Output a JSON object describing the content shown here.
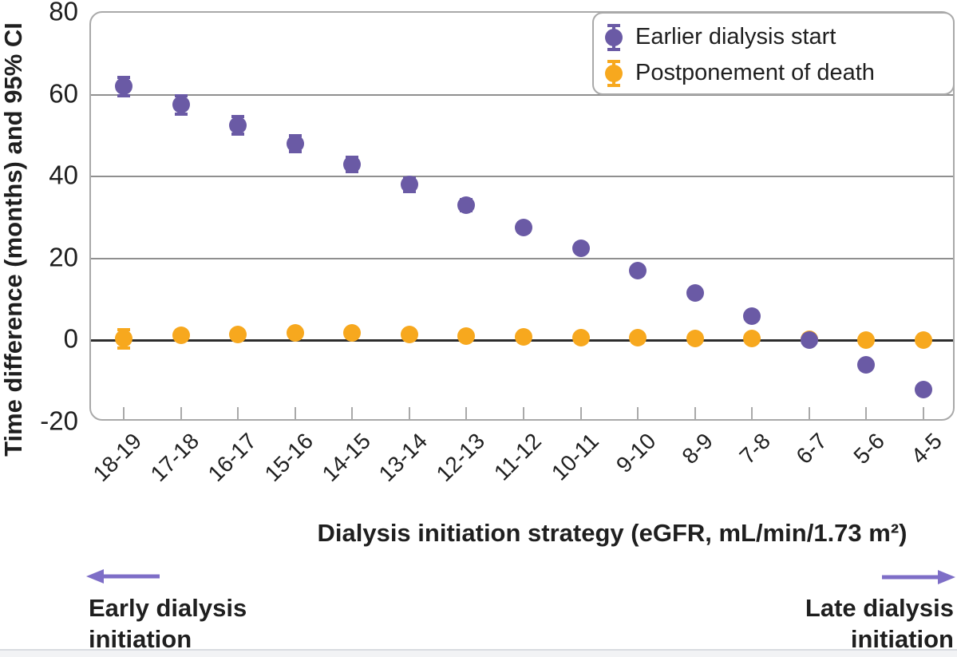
{
  "chart_data": {
    "type": "scatter",
    "title": "",
    "xlabel": "Dialysis initiation strategy (eGFR, mL/min/1.73 m²)",
    "ylabel": "Time difference (months) and 95% CI",
    "categories": [
      "18-19",
      "17-18",
      "16-17",
      "15-16",
      "14-15",
      "13-14",
      "12-13",
      "11-12",
      "10-11",
      "9-10",
      "8-9",
      "7-8",
      "6-7",
      "5-6",
      "4-5"
    ],
    "yticks": [
      80,
      60,
      40,
      20,
      0,
      -20
    ],
    "ylim": [
      -20,
      80
    ],
    "grid": "horizontal-only",
    "legend_position": "top-right-inside",
    "series": [
      {
        "name": "Earlier dialysis start",
        "color": "#6a5aa5",
        "marker": "circle-with-error-bars",
        "values": [
          62,
          57.5,
          52.5,
          48,
          43,
          38,
          33,
          27.5,
          22.5,
          17,
          11.5,
          6,
          0,
          -6,
          -12
        ],
        "ci_halfwidth": [
          2.3,
          2.2,
          2.1,
          1.9,
          1.7,
          1.6,
          1.4,
          1.2,
          1.0,
          0.9,
          0.7,
          0.6,
          0.5,
          0.5,
          0.6
        ]
      },
      {
        "name": "Postponement of death",
        "color": "#f7a81e",
        "marker": "circle-with-error-bars",
        "values": [
          0.4,
          1.2,
          1.5,
          1.8,
          1.8,
          1.4,
          1.0,
          0.8,
          0.7,
          0.7,
          0.5,
          0.4,
          0.2,
          0.1,
          0.1
        ],
        "ci_halfwidth": [
          2.2,
          0.6,
          0.6,
          0.6,
          0.6,
          0.5,
          0.4,
          0.4,
          0.4,
          0.4,
          0.3,
          0.3,
          0.3,
          0.3,
          0.3
        ]
      }
    ]
  },
  "annotations": {
    "early": {
      "line1": "Early dialysis",
      "line2": "initiation",
      "arrow": "left"
    },
    "late": {
      "line1": "Late dialysis",
      "line2": "initiation",
      "arrow": "right"
    }
  },
  "colors": {
    "series_earlier": "#6a5aa5",
    "series_postponement": "#f7a81e",
    "arrow": "#7e6ec7",
    "gridline": "#8f8f8f",
    "zero_line": "#2d2d2d",
    "plot_border": "#a9a9a9",
    "text": "#1f1f1f"
  }
}
